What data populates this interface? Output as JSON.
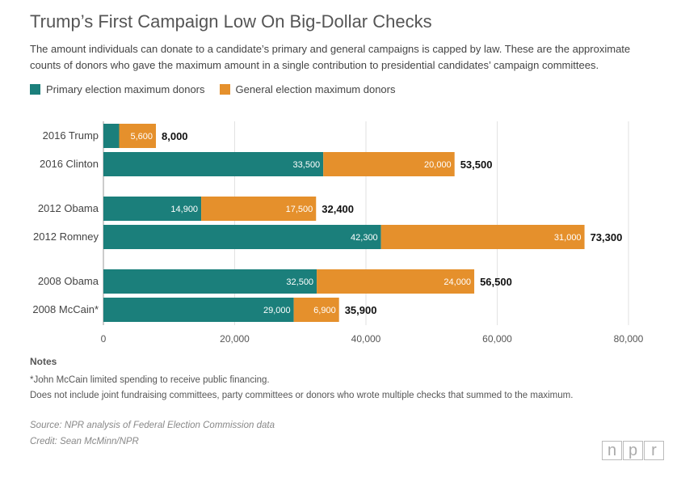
{
  "title": "Trump’s First Campaign Low On Big-Dollar Checks",
  "subtitle": "The amount individuals can donate to a candidate’s primary and general campaigns is capped by law. These are the approximate counts of donors who gave the maximum amount in a single contribution to presidential candidates’ campaign committees.",
  "colors": {
    "primary": "#1b7f7b",
    "general": "#e5902c"
  },
  "chart_data": {
    "type": "bar",
    "orientation": "horizontal",
    "stacked": true,
    "categories": [
      "2016 Trump",
      "2016 Clinton",
      "2012 Obama",
      "2012 Romney",
      "2008 Obama",
      "2008 McCain*"
    ],
    "series": [
      {
        "name": "Primary election maximum donors",
        "values": [
          2400,
          33500,
          14900,
          42300,
          32500,
          29000
        ],
        "labels": [
          "",
          "33,500",
          "14,900",
          "42,300",
          "32,500",
          "29,000"
        ]
      },
      {
        "name": "General election maximum donors",
        "values": [
          5600,
          20000,
          17500,
          31000,
          24000,
          6900
        ],
        "labels": [
          "5,600",
          "20,000",
          "17,500",
          "31,000",
          "24,000",
          "6,900"
        ]
      }
    ],
    "totals": [
      "8,000",
      "53,500",
      "32,400",
      "73,300",
      "56,500",
      "35,900"
    ],
    "xlim": [
      0,
      80000
    ],
    "xticks": [
      0,
      20000,
      40000,
      60000,
      80000
    ],
    "xtick_labels": [
      "0",
      "20,000",
      "40,000",
      "60,000",
      "80,000"
    ],
    "grid": true,
    "legend": "top-left"
  },
  "notes": {
    "title": "Notes",
    "lines": [
      "*John McCain limited spending to receive public financing.",
      "Does not include joint fundraising committees, party committees or donors who wrote multiple checks that summed to the maximum."
    ]
  },
  "source": "Source: NPR analysis of Federal Election Commission data",
  "credit": "Credit: Sean McMinn/NPR",
  "logo": {
    "letters": [
      "n",
      "p",
      "r"
    ]
  }
}
